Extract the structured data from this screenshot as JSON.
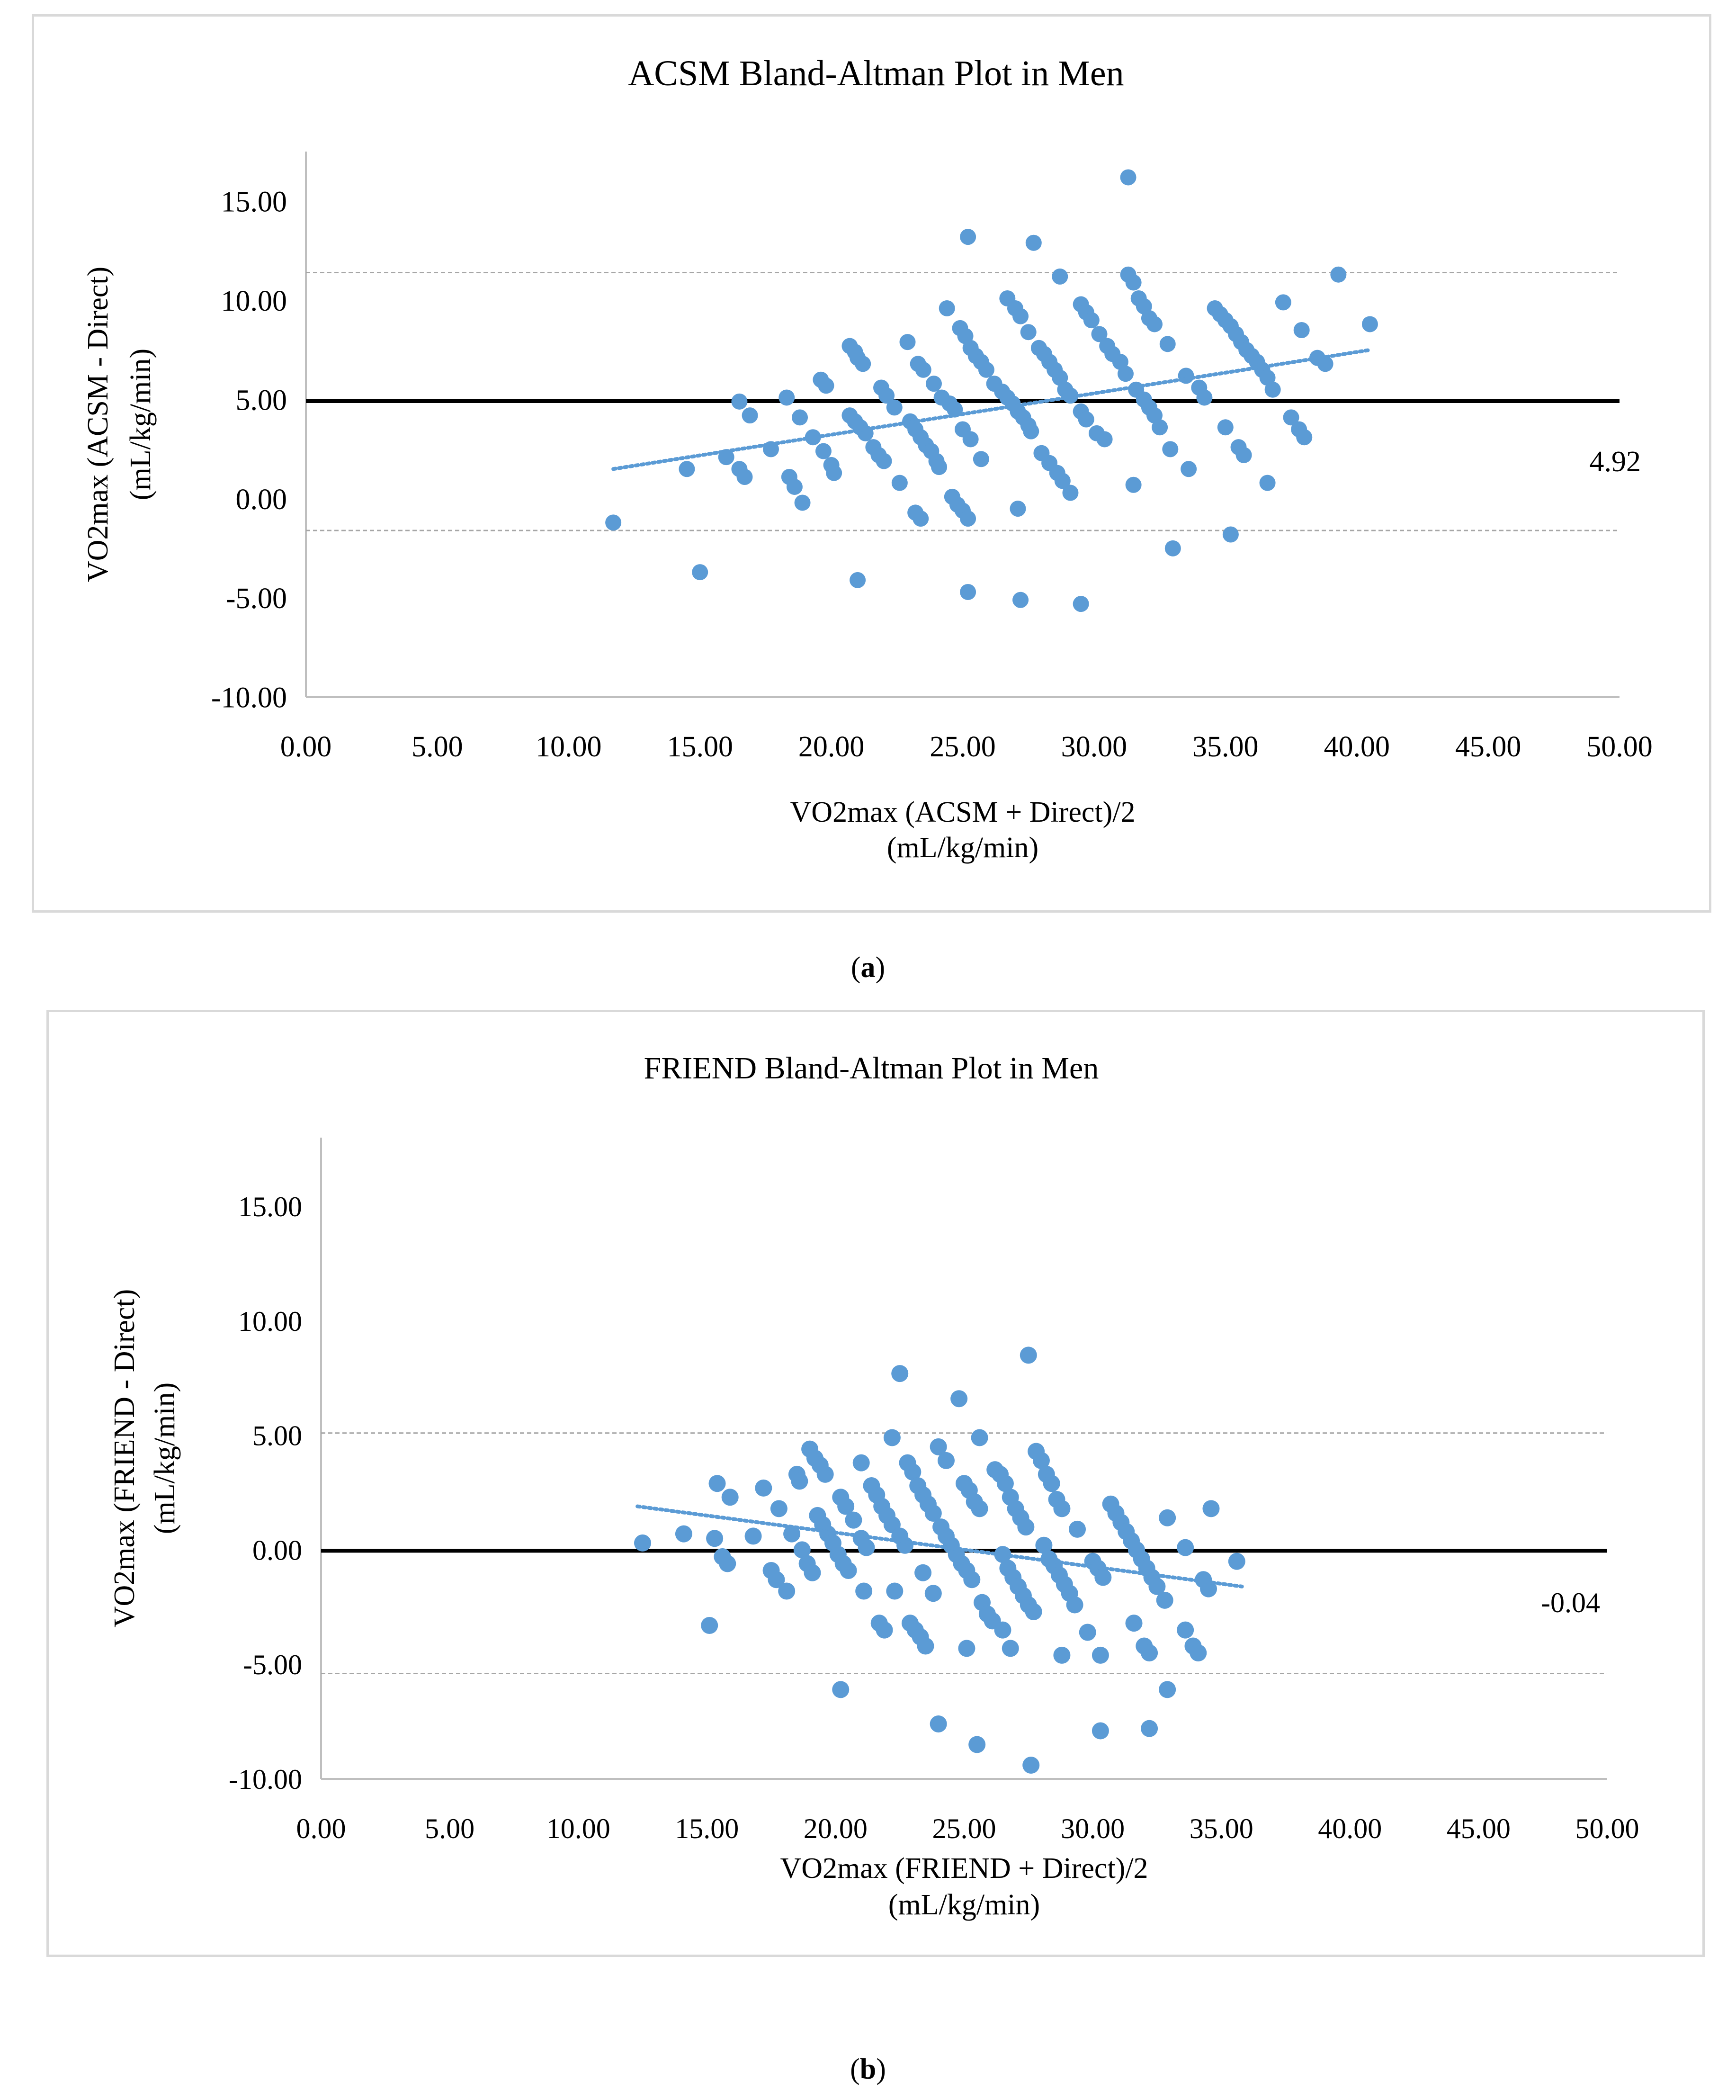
{
  "colors": {
    "point": "#5b9bd5",
    "trend": "#5b9bd5",
    "mean_line": "#000000",
    "limit_line": "#a6a6a6",
    "border": "#d9d9d9"
  },
  "captions": {
    "a_open": "(",
    "a_letter": "a",
    "a_close": ")",
    "b_open": "(",
    "b_letter": "b",
    "b_close": ")"
  },
  "chart_data": [
    {
      "type": "scatter",
      "title": "ACSM Bland-Altman Plot in Men",
      "xlabel": "VO2max (ACSM + Direct)/2",
      "xlabel2": "(mL/kg/min)",
      "ylabel": "VO2max  (ACSM - Direct)",
      "ylabel2": "(mL/kg/min)",
      "xlim": [
        0,
        50
      ],
      "ylim": [
        -10,
        17.5
      ],
      "xticks": [
        "0.00",
        "5.00",
        "10.00",
        "15.00",
        "20.00",
        "25.00",
        "30.00",
        "35.00",
        "40.00",
        "45.00",
        "50.00"
      ],
      "yticks": [
        "-10.00",
        "-5.00",
        "0.00",
        "5.00",
        "10.00",
        "15.00"
      ],
      "mean_bias": 4.92,
      "mean_label": "4.92",
      "upper_loa": 11.4,
      "lower_loa": -1.6,
      "trendline": {
        "x": [
          11.7,
          40.5
        ],
        "y": [
          1.5,
          7.5
        ]
      },
      "points": [
        [
          11.7,
          -1.2
        ],
        [
          14.5,
          1.5
        ],
        [
          15.0,
          -3.7
        ],
        [
          16.0,
          2.1
        ],
        [
          16.5,
          1.5
        ],
        [
          16.7,
          1.1
        ],
        [
          16.5,
          4.9
        ],
        [
          16.9,
          4.2
        ],
        [
          17.7,
          2.5
        ],
        [
          18.3,
          5.1
        ],
        [
          18.4,
          1.1
        ],
        [
          18.6,
          0.6
        ],
        [
          18.8,
          4.1
        ],
        [
          18.9,
          -0.2
        ],
        [
          19.3,
          3.1
        ],
        [
          19.7,
          2.4
        ],
        [
          19.6,
          6.0
        ],
        [
          19.8,
          5.7
        ],
        [
          20.0,
          1.7
        ],
        [
          20.1,
          1.3
        ],
        [
          20.7,
          7.7
        ],
        [
          20.9,
          7.4
        ],
        [
          21.0,
          7.1
        ],
        [
          21.2,
          6.8
        ],
        [
          20.7,
          4.2
        ],
        [
          20.9,
          3.9
        ],
        [
          21.1,
          3.6
        ],
        [
          21.3,
          3.3
        ],
        [
          21.6,
          2.6
        ],
        [
          21.8,
          2.2
        ],
        [
          22.0,
          1.9
        ],
        [
          21.9,
          5.6
        ],
        [
          22.1,
          5.2
        ],
        [
          22.4,
          4.6
        ],
        [
          22.6,
          0.8
        ],
        [
          21.0,
          -4.1
        ],
        [
          22.9,
          7.9
        ],
        [
          23.3,
          6.8
        ],
        [
          23.5,
          6.5
        ],
        [
          23.0,
          3.9
        ],
        [
          23.2,
          3.5
        ],
        [
          23.4,
          3.1
        ],
        [
          23.6,
          2.7
        ],
        [
          23.8,
          2.4
        ],
        [
          24.0,
          1.9
        ],
        [
          24.1,
          1.6
        ],
        [
          23.2,
          -0.7
        ],
        [
          23.4,
          -1.0
        ],
        [
          23.9,
          5.8
        ],
        [
          24.2,
          5.1
        ],
        [
          24.5,
          4.8
        ],
        [
          24.7,
          4.5
        ],
        [
          24.4,
          9.6
        ],
        [
          24.9,
          8.6
        ],
        [
          25.1,
          8.2
        ],
        [
          25.3,
          7.6
        ],
        [
          25.5,
          7.2
        ],
        [
          25.7,
          6.9
        ],
        [
          25.9,
          6.5
        ],
        [
          25.0,
          3.5
        ],
        [
          25.3,
          3.0
        ],
        [
          25.7,
          2.0
        ],
        [
          24.6,
          0.1
        ],
        [
          24.8,
          -0.3
        ],
        [
          25.0,
          -0.6
        ],
        [
          25.2,
          -1.0
        ],
        [
          25.2,
          13.2
        ],
        [
          25.2,
          -4.7
        ],
        [
          26.2,
          5.8
        ],
        [
          26.5,
          5.4
        ],
        [
          26.7,
          5.1
        ],
        [
          26.9,
          4.8
        ],
        [
          27.1,
          4.4
        ],
        [
          27.3,
          4.1
        ],
        [
          27.5,
          3.7
        ],
        [
          27.6,
          3.4
        ],
        [
          26.7,
          10.1
        ],
        [
          27.0,
          9.6
        ],
        [
          27.2,
          9.2
        ],
        [
          27.5,
          8.4
        ],
        [
          27.7,
          12.9
        ],
        [
          27.9,
          7.6
        ],
        [
          28.1,
          7.3
        ],
        [
          28.3,
          6.9
        ],
        [
          28.5,
          6.5
        ],
        [
          28.7,
          6.1
        ],
        [
          28.9,
          5.5
        ],
        [
          29.1,
          5.2
        ],
        [
          28.0,
          2.3
        ],
        [
          28.3,
          1.8
        ],
        [
          28.6,
          1.3
        ],
        [
          28.8,
          0.9
        ],
        [
          29.1,
          0.3
        ],
        [
          27.1,
          -0.5
        ],
        [
          27.2,
          -5.1
        ],
        [
          28.7,
          11.2
        ],
        [
          29.5,
          9.8
        ],
        [
          29.7,
          9.4
        ],
        [
          29.9,
          9.0
        ],
        [
          30.2,
          8.3
        ],
        [
          30.5,
          7.7
        ],
        [
          30.7,
          7.3
        ],
        [
          31.0,
          6.9
        ],
        [
          31.2,
          6.3
        ],
        [
          29.5,
          4.4
        ],
        [
          29.7,
          4.0
        ],
        [
          30.1,
          3.3
        ],
        [
          30.4,
          3.0
        ],
        [
          31.3,
          16.2
        ],
        [
          31.3,
          11.3
        ],
        [
          31.5,
          10.9
        ],
        [
          31.7,
          10.1
        ],
        [
          31.9,
          9.7
        ],
        [
          32.1,
          9.1
        ],
        [
          32.3,
          8.8
        ],
        [
          31.6,
          5.5
        ],
        [
          31.9,
          5.0
        ],
        [
          32.1,
          4.6
        ],
        [
          32.3,
          4.2
        ],
        [
          32.5,
          3.6
        ],
        [
          31.5,
          0.7
        ],
        [
          29.5,
          -5.3
        ],
        [
          32.8,
          7.8
        ],
        [
          32.9,
          2.5
        ],
        [
          33.0,
          -2.5
        ],
        [
          33.5,
          6.2
        ],
        [
          33.6,
          1.5
        ],
        [
          34.0,
          5.6
        ],
        [
          34.2,
          5.1
        ],
        [
          34.6,
          9.6
        ],
        [
          34.8,
          9.3
        ],
        [
          35.0,
          9.0
        ],
        [
          35.2,
          8.7
        ],
        [
          35.4,
          8.3
        ],
        [
          35.6,
          7.9
        ],
        [
          35.8,
          7.5
        ],
        [
          36.0,
          7.2
        ],
        [
          36.2,
          6.9
        ],
        [
          36.4,
          6.5
        ],
        [
          36.6,
          6.1
        ],
        [
          35.0,
          3.6
        ],
        [
          35.5,
          2.6
        ],
        [
          35.7,
          2.2
        ],
        [
          35.2,
          -1.8
        ],
        [
          36.6,
          0.8
        ],
        [
          36.8,
          5.5
        ],
        [
          37.2,
          9.9
        ],
        [
          37.5,
          4.1
        ],
        [
          37.8,
          3.5
        ],
        [
          38.0,
          3.1
        ],
        [
          37.9,
          8.5
        ],
        [
          38.5,
          7.1
        ],
        [
          38.8,
          6.8
        ],
        [
          39.3,
          11.3
        ],
        [
          40.5,
          8.8
        ]
      ]
    },
    {
      "type": "scatter",
      "title": "FRIEND Bland-Altman Plot in Men",
      "xlabel": "VO2max (FRIEND + Direct)/2",
      "xlabel2": "(mL/kg/min)",
      "ylabel": "VO2max  (FRIEND - Direct)",
      "ylabel2": "(mL/kg/min)",
      "xlim": [
        0,
        50
      ],
      "ylim": [
        -10,
        18
      ],
      "xticks": [
        "0.00",
        "5.00",
        "10.00",
        "15.00",
        "20.00",
        "25.00",
        "30.00",
        "35.00",
        "40.00",
        "45.00",
        "50.00"
      ],
      "yticks": [
        "-10.00",
        "-5.00",
        "0.00",
        "5.00",
        "10.00",
        "15.00"
      ],
      "mean_bias": -0.04,
      "mean_label": "-0.04",
      "upper_loa": 5.1,
      "lower_loa": -5.4,
      "trendline": {
        "x": [
          12.3,
          35.8
        ],
        "y": [
          1.9,
          -1.6
        ]
      },
      "points": [
        [
          12.5,
          0.3
        ],
        [
          14.1,
          0.7
        ],
        [
          15.1,
          -3.3
        ],
        [
          15.3,
          0.5
        ],
        [
          15.4,
          2.9
        ],
        [
          15.6,
          -0.3
        ],
        [
          15.8,
          -0.6
        ],
        [
          15.9,
          2.3
        ],
        [
          16.8,
          0.6
        ],
        [
          17.2,
          2.7
        ],
        [
          17.5,
          -0.9
        ],
        [
          17.7,
          -1.3
        ],
        [
          17.8,
          1.8
        ],
        [
          18.1,
          -1.8
        ],
        [
          18.3,
          0.7
        ],
        [
          18.5,
          3.3
        ],
        [
          18.6,
          3.0
        ],
        [
          18.7,
          0.0
        ],
        [
          18.9,
          -0.6
        ],
        [
          19.1,
          -1.0
        ],
        [
          19.0,
          4.4
        ],
        [
          19.2,
          4.0
        ],
        [
          19.4,
          3.7
        ],
        [
          19.6,
          3.3
        ],
        [
          19.3,
          1.5
        ],
        [
          19.5,
          1.1
        ],
        [
          19.7,
          0.7
        ],
        [
          19.9,
          0.3
        ],
        [
          20.1,
          -0.2
        ],
        [
          20.3,
          -0.6
        ],
        [
          20.5,
          -0.9
        ],
        [
          20.2,
          2.3
        ],
        [
          20.4,
          1.9
        ],
        [
          20.7,
          1.3
        ],
        [
          21.0,
          3.8
        ],
        [
          21.1,
          -1.8
        ],
        [
          20.2,
          -6.1
        ],
        [
          21.0,
          0.5
        ],
        [
          21.2,
          0.1
        ],
        [
          21.4,
          2.8
        ],
        [
          21.6,
          2.4
        ],
        [
          21.8,
          1.9
        ],
        [
          22.0,
          1.5
        ],
        [
          22.2,
          1.1
        ],
        [
          21.7,
          -3.2
        ],
        [
          21.9,
          -3.5
        ],
        [
          22.2,
          4.9
        ],
        [
          22.3,
          -1.8
        ],
        [
          22.5,
          0.6
        ],
        [
          22.7,
          0.2
        ],
        [
          22.5,
          7.7
        ],
        [
          22.8,
          3.8
        ],
        [
          23.0,
          3.4
        ],
        [
          23.2,
          2.8
        ],
        [
          23.4,
          2.4
        ],
        [
          23.6,
          2.0
        ],
        [
          23.8,
          1.6
        ],
        [
          22.9,
          -3.2
        ],
        [
          23.1,
          -3.5
        ],
        [
          23.3,
          -3.8
        ],
        [
          23.5,
          -4.2
        ],
        [
          23.4,
          -1.0
        ],
        [
          23.8,
          -1.9
        ],
        [
          24.0,
          -7.6
        ],
        [
          24.0,
          4.5
        ],
        [
          24.3,
          3.9
        ],
        [
          24.1,
          1.0
        ],
        [
          24.3,
          0.6
        ],
        [
          24.5,
          0.2
        ],
        [
          24.7,
          -0.2
        ],
        [
          24.9,
          -0.6
        ],
        [
          25.1,
          -0.9
        ],
        [
          25.3,
          -1.3
        ],
        [
          24.8,
          6.6
        ],
        [
          25.0,
          2.9
        ],
        [
          25.2,
          2.6
        ],
        [
          25.4,
          2.1
        ],
        [
          25.6,
          1.8
        ],
        [
          25.7,
          -2.3
        ],
        [
          25.9,
          -2.8
        ],
        [
          26.1,
          -3.1
        ],
        [
          25.1,
          -4.3
        ],
        [
          25.5,
          -8.5
        ],
        [
          25.6,
          4.9
        ],
        [
          26.2,
          3.5
        ],
        [
          26.4,
          3.3
        ],
        [
          26.6,
          2.9
        ],
        [
          26.8,
          2.3
        ],
        [
          27.0,
          1.8
        ],
        [
          27.2,
          1.4
        ],
        [
          27.4,
          1.0
        ],
        [
          26.5,
          -0.2
        ],
        [
          26.7,
          -0.8
        ],
        [
          26.9,
          -1.2
        ],
        [
          27.1,
          -1.6
        ],
        [
          27.3,
          -2.0
        ],
        [
          27.5,
          -2.4
        ],
        [
          27.7,
          -2.7
        ],
        [
          27.5,
          8.5
        ],
        [
          27.8,
          4.3
        ],
        [
          28.0,
          3.9
        ],
        [
          28.2,
          3.3
        ],
        [
          28.4,
          2.9
        ],
        [
          28.6,
          2.2
        ],
        [
          28.8,
          1.8
        ],
        [
          28.1,
          0.2
        ],
        [
          28.3,
          -0.4
        ],
        [
          28.5,
          -0.7
        ],
        [
          28.7,
          -1.1
        ],
        [
          28.9,
          -1.5
        ],
        [
          29.1,
          -1.9
        ],
        [
          29.3,
          -2.4
        ],
        [
          26.5,
          -3.5
        ],
        [
          26.8,
          -4.3
        ],
        [
          28.8,
          -4.6
        ],
        [
          27.6,
          -9.4
        ],
        [
          29.4,
          0.9
        ],
        [
          29.8,
          -3.6
        ],
        [
          30.0,
          -0.5
        ],
        [
          30.2,
          -0.8
        ],
        [
          30.4,
          -1.2
        ],
        [
          30.3,
          -4.6
        ],
        [
          30.3,
          -7.9
        ],
        [
          30.7,
          2.0
        ],
        [
          30.9,
          1.6
        ],
        [
          31.1,
          1.2
        ],
        [
          31.3,
          0.8
        ],
        [
          31.5,
          0.4
        ],
        [
          31.7,
          0.0
        ],
        [
          31.9,
          -0.4
        ],
        [
          32.1,
          -0.8
        ],
        [
          32.3,
          -1.2
        ],
        [
          32.5,
          -1.6
        ],
        [
          31.6,
          -3.2
        ],
        [
          32.0,
          -4.2
        ],
        [
          32.2,
          -4.5
        ],
        [
          32.2,
          -7.8
        ],
        [
          32.9,
          1.4
        ],
        [
          32.8,
          -2.2
        ],
        [
          32.9,
          -6.1
        ],
        [
          33.6,
          0.1
        ],
        [
          33.6,
          -3.5
        ],
        [
          33.9,
          -4.2
        ],
        [
          34.1,
          -4.5
        ],
        [
          34.3,
          -1.3
        ],
        [
          34.5,
          -1.7
        ],
        [
          34.6,
          1.8
        ],
        [
          35.6,
          -0.5
        ]
      ]
    }
  ]
}
